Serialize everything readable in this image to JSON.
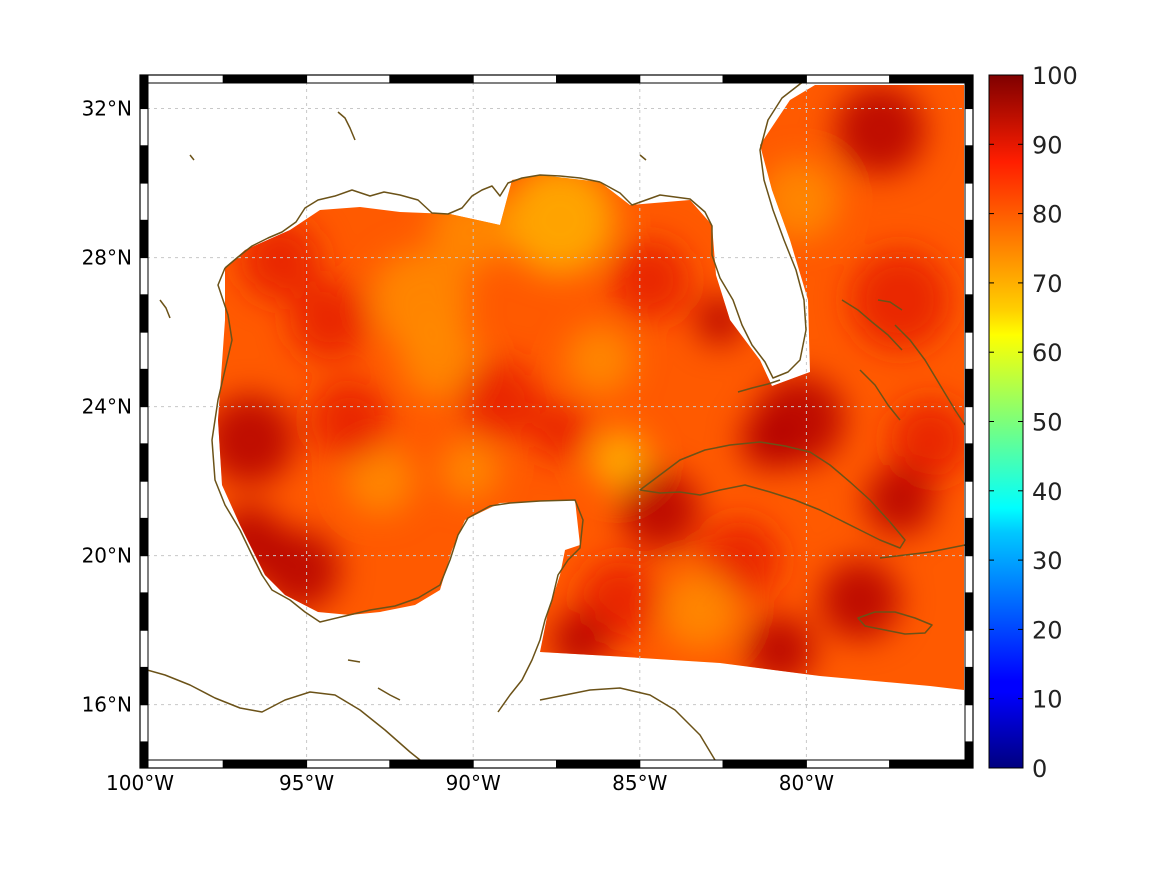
{
  "map": {
    "lon_range": [
      -100,
      -75
    ],
    "lat_range": [
      14.3,
      32.9
    ],
    "lon_ticks": [
      {
        "value": -100,
        "label": "100°W"
      },
      {
        "value": -95,
        "label": "95°W"
      },
      {
        "value": -90,
        "label": "90°W"
      },
      {
        "value": -85,
        "label": "85°W"
      },
      {
        "value": -80,
        "label": "80°W"
      }
    ],
    "lat_ticks": [
      {
        "value": 16,
        "label": "16°N"
      },
      {
        "value": 20,
        "label": "20°N"
      },
      {
        "value": 24,
        "label": "24°N"
      },
      {
        "value": 28,
        "label": "28°N"
      },
      {
        "value": 32,
        "label": "32°N"
      }
    ],
    "grid": true,
    "coastline_color": "#6b5218",
    "field_colors": {
      "base": "#ff5a00",
      "dark": "#b40000",
      "red": "#e61e00",
      "orange": "#ff8c00",
      "yellow": "#ffb000"
    }
  },
  "colorbar": {
    "colormap": "jet",
    "range": [
      0,
      100
    ],
    "ticks": [
      {
        "value": 100,
        "label": "100"
      },
      {
        "value": 90,
        "label": "90"
      },
      {
        "value": 80,
        "label": "80"
      },
      {
        "value": 70,
        "label": "70"
      },
      {
        "value": 60,
        "label": "60"
      },
      {
        "value": 50,
        "label": "50"
      },
      {
        "value": 40,
        "label": "40"
      },
      {
        "value": 30,
        "label": "30"
      },
      {
        "value": 20,
        "label": "20"
      },
      {
        "value": 10,
        "label": "10"
      },
      {
        "value": 0,
        "label": "0"
      }
    ]
  }
}
